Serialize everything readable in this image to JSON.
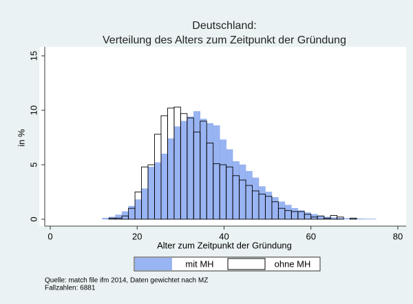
{
  "chart_data": {
    "type": "histogram",
    "title": "Deutschland:",
    "subtitle": "Verteilung des Alters zum Zeitpunkt der Gründung",
    "x_label": "Alter zum Zeitpunkt der Gründung",
    "y_label": "in %",
    "bins": [
      12,
      13.5,
      15,
      16.5,
      18,
      19.5,
      21,
      22.5,
      24,
      25.5,
      27,
      28.5,
      30,
      31.5,
      33,
      34.5,
      36,
      37.5,
      39,
      40.5,
      42,
      43.5,
      45,
      46.5,
      48,
      49.5,
      51,
      52.5,
      54,
      55.5,
      57,
      58.5,
      60,
      61.5,
      63,
      64.5,
      66,
      67.5,
      69,
      70.5,
      72,
      73.5,
      75
    ],
    "series": [
      {
        "name": "mit MH",
        "color": "#99b4f2",
        "fill": true,
        "values": [
          0.1,
          0.2,
          0.4,
          0.7,
          1.2,
          1.8,
          2.8,
          4.8,
          5.2,
          6.0,
          7.4,
          8.5,
          9.0,
          9.4,
          9.9,
          9.2,
          8.8,
          8.6,
          7.3,
          6.4,
          5.3,
          5.0,
          4.4,
          3.8,
          3.0,
          2.5,
          2.0,
          1.6,
          1.3,
          1.0,
          0.8,
          0.6,
          0.45,
          0.3,
          0.2,
          0.15,
          0.1,
          0.08,
          0.05,
          0.05,
          0.03,
          0.02
        ]
      },
      {
        "name": "ohne MH",
        "color": "#000000",
        "fill": false,
        "values": [
          0,
          0.1,
          0.1,
          0.3,
          1.0,
          2.5,
          4.8,
          5.0,
          7.8,
          9.5,
          10.2,
          10.3,
          9.7,
          9.3,
          8.0,
          9.0,
          7.0,
          5.1,
          5.0,
          4.8,
          4.0,
          3.6,
          3.1,
          2.6,
          2.3,
          2.1,
          1.6,
          1.0,
          0.8,
          0.7,
          0.7,
          0.45,
          0.2,
          0.3,
          0.1,
          0.35,
          0.2,
          0,
          0.1,
          0,
          0,
          0
        ]
      }
    ],
    "xlim": [
      0,
      80
    ],
    "xticks": [
      0,
      20,
      40,
      60,
      80
    ],
    "ylim": [
      0,
      15
    ],
    "yticks": [
      0,
      5,
      10,
      15
    ],
    "grid": false,
    "notes": [
      "Quelle: match file ifm 2014, Daten gewichtet nach MZ",
      "Fallzahlen: 6881"
    ]
  }
}
